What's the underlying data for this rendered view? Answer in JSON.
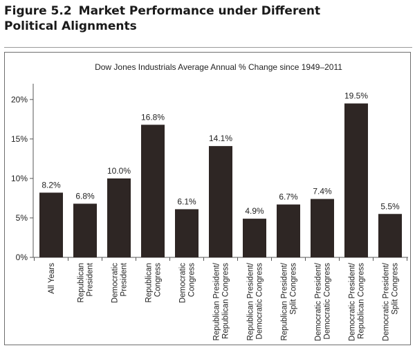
{
  "figure": {
    "label": "Figure 5.2",
    "title_line1": "Market Performance under Different",
    "title_line2": "Political Alignments"
  },
  "colors": {
    "bar": "#2e2624",
    "axis": "#555555",
    "text": "#222222"
  },
  "chart_data": {
    "type": "bar",
    "title": "Dow Jones Industrials Average Annual % Change since 1949–2011",
    "xlabel": "",
    "ylabel": "",
    "ylim": [
      0,
      22
    ],
    "yticks": [
      0,
      5,
      10,
      15,
      20
    ],
    "ytick_labels": [
      "0%",
      "5%",
      "10%",
      "15%",
      "20%"
    ],
    "grid": false,
    "categories": [
      [
        "All Years"
      ],
      [
        "Republican",
        "President"
      ],
      [
        "Democratic",
        "President"
      ],
      [
        "Republican",
        "Congress"
      ],
      [
        "Democratic",
        "Congress"
      ],
      [
        "Republican President/",
        "Republican Congress"
      ],
      [
        "Republican President/",
        "Democratic Congress"
      ],
      [
        "Republican President/",
        "Split Congress"
      ],
      [
        "Democratic President/",
        "Democratic Congress"
      ],
      [
        "Democratic President/",
        "Republican Congress"
      ],
      [
        "Democratic President/",
        "Split Congress"
      ]
    ],
    "values": [
      8.2,
      6.8,
      10.0,
      16.8,
      6.1,
      14.1,
      4.9,
      6.7,
      7.4,
      19.5,
      5.5
    ],
    "value_labels": [
      "8.2%",
      "6.8%",
      "10.0%",
      "16.8%",
      "6.1%",
      "14.1%",
      "4.9%",
      "6.7%",
      "7.4%",
      "19.5%",
      "5.5%"
    ]
  }
}
